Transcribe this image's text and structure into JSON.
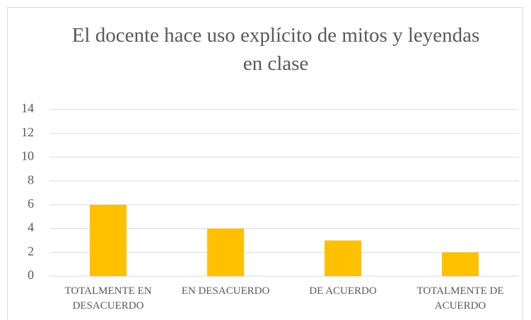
{
  "chart_data": {
    "type": "bar",
    "title": "El docente hace uso explícito de mitos y leyendas en clase",
    "categories": [
      "TOTALMENTE EN DESACUERDO",
      "EN DESACUERDO",
      "DE ACUERDO",
      "TOTALMENTE DE ACUERDO"
    ],
    "values": [
      6,
      4,
      3,
      2
    ],
    "color": "#ffc000",
    "ylim": [
      0,
      14
    ],
    "yticks": [
      0,
      2,
      4,
      6,
      8,
      10,
      12,
      14
    ],
    "grid": true
  }
}
